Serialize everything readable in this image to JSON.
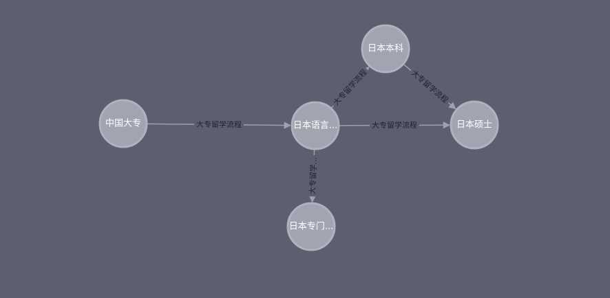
{
  "graph": {
    "nodes": [
      {
        "id": "china-college",
        "label": "中国大专"
      },
      {
        "id": "japan-language",
        "label": "日本语言..."
      },
      {
        "id": "japan-bachelor",
        "label": "日本本科"
      },
      {
        "id": "japan-master",
        "label": "日本硕士"
      },
      {
        "id": "japan-vocational",
        "label": "日本专门..."
      }
    ],
    "edges": [
      {
        "from": "china-college",
        "to": "japan-language",
        "label": "大专留学流程"
      },
      {
        "from": "japan-language",
        "to": "japan-bachelor",
        "label": "大专留学流程"
      },
      {
        "from": "japan-language",
        "to": "japan-master",
        "label": "大专留学流程"
      },
      {
        "from": "japan-bachelor",
        "to": "japan-master",
        "label": "大专留学流程"
      },
      {
        "from": "japan-language",
        "to": "japan-vocational",
        "label": "大专留学..."
      }
    ]
  },
  "colors": {
    "background": "#5b5f6f",
    "node_fill": "#a1a5b1",
    "edge": "#9ea2ae",
    "edge_label": "#1f2230",
    "node_label": "#ffffff"
  }
}
